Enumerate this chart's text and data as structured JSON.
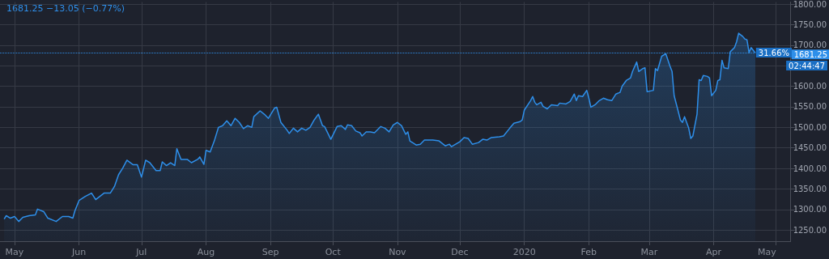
{
  "chart_data": {
    "type": "area",
    "color": "#2e8fea",
    "marker": "none",
    "grid": true,
    "annotations": [
      "1681.25 −13.05 (−0.77%)",
      "31.66%",
      "02:44:47"
    ],
    "ref_lines": [
      {
        "axis": "y",
        "value": 1681.25,
        "label": "1681.25",
        "color": "#2e8fea",
        "line_style": "dotted"
      }
    ],
    "xlim": [
      "2019-04-24",
      "2020-05-08"
    ],
    "xticks": [
      {
        "value": "2019-05",
        "label": "May"
      },
      {
        "value": "2019-06",
        "label": "Jun"
      },
      {
        "value": "2019-07",
        "label": "Jul"
      },
      {
        "value": "2019-08",
        "label": "Aug"
      },
      {
        "value": "2019-09",
        "label": "Sep"
      },
      {
        "value": "2019-10",
        "label": "Oct"
      },
      {
        "value": "2019-11",
        "label": "Nov"
      },
      {
        "value": "2019-12",
        "label": "Dec"
      },
      {
        "value": "2020-01",
        "label": "2020"
      },
      {
        "value": "2020-02",
        "label": "Feb"
      },
      {
        "value": "2020-03",
        "label": "Mar"
      },
      {
        "value": "2020-04",
        "label": "Apr"
      },
      {
        "value": "2020-05",
        "label": "May"
      }
    ],
    "ylim": [
      1223,
      1805
    ],
    "yticks": [
      {
        "value": 1250,
        "label": "1250.00"
      },
      {
        "value": 1300,
        "label": "1300.00"
      },
      {
        "value": 1350,
        "label": "1350.00"
      },
      {
        "value": 1400,
        "label": "1400.00"
      },
      {
        "value": 1450,
        "label": "1450.00"
      },
      {
        "value": 1500,
        "label": "1500.00"
      },
      {
        "value": 1550,
        "label": "1550.00"
      },
      {
        "value": 1600,
        "label": "1600.00"
      },
      {
        "value": 1650,
        "label": null
      },
      {
        "value": 1700,
        "label": "1700.00"
      },
      {
        "value": 1750,
        "label": "1750.00"
      },
      {
        "value": 1800,
        "label": "1800.00"
      }
    ],
    "x": [
      "2019-04-26",
      "2019-04-27",
      "2019-04-29",
      "2019-05-01",
      "2019-05-03",
      "2019-05-05",
      "2019-05-08",
      "2019-05-11",
      "2019-05-12",
      "2019-05-15",
      "2019-05-17",
      "2019-05-21",
      "2019-05-24",
      "2019-05-27",
      "2019-05-29",
      "2019-05-30",
      "2019-06-01",
      "2019-06-04",
      "2019-06-07",
      "2019-06-09",
      "2019-06-13",
      "2019-06-16",
      "2019-06-18",
      "2019-06-20",
      "2019-06-22",
      "2019-06-24",
      "2019-06-27",
      "2019-06-29",
      "2019-07-01",
      "2019-07-03",
      "2019-07-05",
      "2019-07-08",
      "2019-07-10",
      "2019-07-11",
      "2019-07-13",
      "2019-07-15",
      "2019-07-17",
      "2019-07-18",
      "2019-07-20",
      "2019-07-23",
      "2019-07-25",
      "2019-07-28",
      "2019-07-29",
      "2019-07-31",
      "2019-08-01",
      "2019-08-03",
      "2019-08-05",
      "2019-08-07",
      "2019-08-09",
      "2019-08-11",
      "2019-08-13",
      "2019-08-15",
      "2019-08-17",
      "2019-08-19",
      "2019-08-21",
      "2019-08-23",
      "2019-08-24",
      "2019-08-27",
      "2019-08-29",
      "2019-08-31",
      "2019-09-03",
      "2019-09-04",
      "2019-09-06",
      "2019-09-09",
      "2019-09-10",
      "2019-09-12",
      "2019-09-14",
      "2019-09-16",
      "2019-09-18",
      "2019-09-20",
      "2019-09-22",
      "2019-09-24",
      "2019-09-26",
      "2019-09-27",
      "2019-09-30",
      "2019-10-03",
      "2019-10-05",
      "2019-10-07",
      "2019-10-08",
      "2019-10-10",
      "2019-10-12",
      "2019-10-14",
      "2019-10-15",
      "2019-10-17",
      "2019-10-19",
      "2019-10-21",
      "2019-10-24",
      "2019-10-26",
      "2019-10-28",
      "2019-10-30",
      "2019-11-01",
      "2019-11-03",
      "2019-11-05",
      "2019-11-06",
      "2019-11-07",
      "2019-11-10",
      "2019-11-12",
      "2019-11-14",
      "2019-11-18",
      "2019-11-21",
      "2019-11-24",
      "2019-11-26",
      "2019-11-27",
      "2019-11-29",
      "2019-12-01",
      "2019-12-03",
      "2019-12-05",
      "2019-12-07",
      "2019-12-10",
      "2019-12-12",
      "2019-12-14",
      "2019-12-16",
      "2019-12-20",
      "2019-12-22",
      "2019-12-25",
      "2019-12-27",
      "2019-12-30",
      "2019-12-31",
      "2020-01-01",
      "2020-01-04",
      "2020-01-05",
      "2020-01-06",
      "2020-01-07",
      "2020-01-09",
      "2020-01-10",
      "2020-01-12",
      "2020-01-14",
      "2020-01-17",
      "2020-01-18",
      "2020-01-21",
      "2020-01-23",
      "2020-01-25",
      "2020-01-26",
      "2020-01-27",
      "2020-01-29",
      "2020-01-31",
      "2020-02-01",
      "2020-02-02",
      "2020-02-04",
      "2020-02-06",
      "2020-02-08",
      "2020-02-10",
      "2020-02-12",
      "2020-02-14",
      "2020-02-16",
      "2020-02-17",
      "2020-02-19",
      "2020-02-21",
      "2020-02-22",
      "2020-02-24",
      "2020-02-25",
      "2020-02-27",
      "2020-02-28",
      "2020-02-29",
      "2020-03-03",
      "2020-03-04",
      "2020-03-05",
      "2020-03-07",
      "2020-03-09",
      "2020-03-11",
      "2020-03-12",
      "2020-03-13",
      "2020-03-15",
      "2020-03-16",
      "2020-03-17",
      "2020-03-18",
      "2020-03-20",
      "2020-03-21",
      "2020-03-22",
      "2020-03-24",
      "2020-03-25",
      "2020-03-26",
      "2020-03-27",
      "2020-03-29",
      "2020-03-30",
      "2020-03-31",
      "2020-04-02",
      "2020-04-03",
      "2020-04-04",
      "2020-04-05",
      "2020-04-06",
      "2020-04-08",
      "2020-04-09",
      "2020-04-11",
      "2020-04-12",
      "2020-04-13",
      "2020-04-15",
      "2020-04-16",
      "2020-04-17",
      "2020-04-18",
      "2020-04-19",
      "2020-04-21"
    ],
    "values": [
      1277,
      1285,
      1279,
      1283,
      1271,
      1281,
      1285,
      1287,
      1301,
      1295,
      1279,
      1271,
      1283,
      1283,
      1279,
      1297,
      1322,
      1332,
      1340,
      1324,
      1340,
      1340,
      1356,
      1385,
      1401,
      1420,
      1409,
      1409,
      1379,
      1420,
      1414,
      1395,
      1395,
      1416,
      1407,
      1414,
      1407,
      1448,
      1422,
      1422,
      1414,
      1422,
      1428,
      1410,
      1444,
      1440,
      1467,
      1500,
      1504,
      1516,
      1504,
      1522,
      1512,
      1497,
      1504,
      1500,
      1526,
      1540,
      1532,
      1522,
      1547,
      1549,
      1512,
      1493,
      1485,
      1498,
      1489,
      1498,
      1493,
      1500,
      1518,
      1532,
      1504,
      1502,
      1471,
      1502,
      1504,
      1495,
      1506,
      1504,
      1491,
      1487,
      1479,
      1489,
      1489,
      1487,
      1502,
      1498,
      1489,
      1506,
      1512,
      1504,
      1483,
      1489,
      1467,
      1457,
      1459,
      1469,
      1469,
      1467,
      1455,
      1459,
      1453,
      1459,
      1465,
      1475,
      1473,
      1459,
      1463,
      1471,
      1469,
      1475,
      1477,
      1479,
      1498,
      1510,
      1514,
      1518,
      1542,
      1565,
      1575,
      1561,
      1555,
      1561,
      1551,
      1545,
      1555,
      1553,
      1559,
      1557,
      1563,
      1581,
      1565,
      1577,
      1575,
      1590,
      1571,
      1549,
      1555,
      1565,
      1571,
      1567,
      1565,
      1581,
      1585,
      1600,
      1614,
      1620,
      1636,
      1659,
      1636,
      1643,
      1645,
      1587,
      1590,
      1643,
      1638,
      1673,
      1679,
      1649,
      1636,
      1577,
      1538,
      1518,
      1512,
      1526,
      1498,
      1473,
      1479,
      1532,
      1616,
      1614,
      1626,
      1624,
      1620,
      1577,
      1590,
      1614,
      1616,
      1663,
      1645,
      1643,
      1684,
      1694,
      1708,
      1729,
      1721,
      1715,
      1713,
      1682,
      1694,
      1681
    ]
  }
}
